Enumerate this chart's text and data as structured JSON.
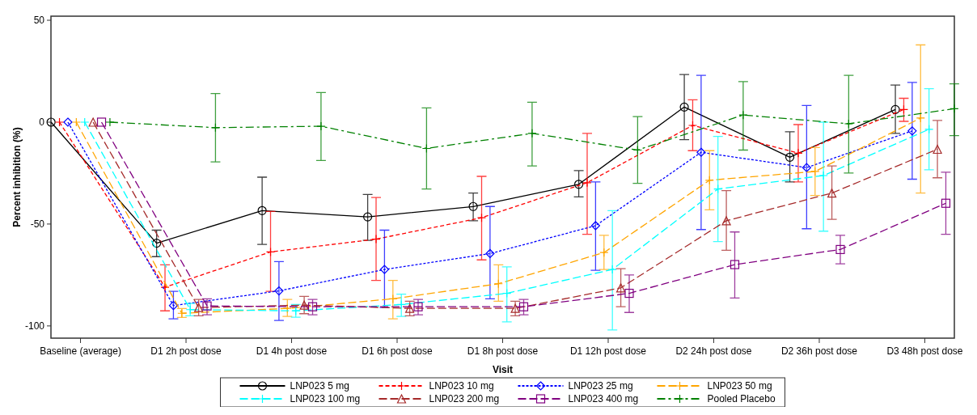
{
  "chart_data": {
    "type": "line",
    "xlabel": "Visit",
    "ylabel": "Percent inhibition (%)",
    "categories": [
      "Baseline (average)",
      "D1 2h post dose",
      "D1 4h post dose",
      "D1 6h post dose",
      "D1 8h post dose",
      "D1 12h post dose",
      "D2 24h post dose",
      "D2 36h post dose",
      "D3 48h post dose"
    ],
    "ylim": [
      -106,
      52
    ],
    "yticks": [
      -100,
      -50,
      0,
      50
    ],
    "grid": false,
    "legend": "bottom",
    "series": [
      {
        "name": "LNP023 5 mg",
        "color": "#000000",
        "marker": "circle",
        "line_style": "solid",
        "values": [
          0,
          -59.4,
          -43.4,
          -46.5,
          -41.4,
          -30.5,
          7.4,
          -17.2,
          6.2
        ],
        "errors": [
          null,
          [
            -66,
            -53
          ],
          [
            -60,
            -27
          ],
          [
            -58,
            -35.5
          ],
          [
            -48.4,
            -34.8
          ],
          [
            -36.7,
            -23.8
          ],
          [
            -8.6,
            23.4
          ],
          [
            -29.3,
            -4.7
          ],
          [
            -5.5,
            18.2
          ]
        ]
      },
      {
        "name": "LNP023 10 mg",
        "color": "#ff0000",
        "marker": "cross",
        "line_style": "dashed",
        "values": [
          0,
          -81,
          -63.7,
          -57.4,
          -46.9,
          -29.7,
          -1.6,
          -15.2,
          6.2
        ],
        "errors": [
          null,
          [
            -92.6,
            -70
          ],
          [
            -83,
            -43.8
          ],
          [
            -77.7,
            -37
          ],
          [
            -67.6,
            -26.6
          ],
          [
            -55,
            -5.5
          ],
          [
            -14,
            11
          ],
          [
            -29.3,
            -1.2
          ],
          [
            0.4,
            11.7
          ]
        ]
      },
      {
        "name": "LNP023 25 mg",
        "color": "#0000ff",
        "marker": "diamond",
        "line_style": "dotted",
        "values": [
          0,
          -90,
          -82.8,
          -72.3,
          -64.5,
          -50.8,
          -14.8,
          -22.3,
          -4.3
        ],
        "errors": [
          null,
          [
            -96.5,
            -83
          ],
          [
            -97.3,
            -68.4
          ],
          [
            -91,
            -53
          ],
          [
            -86.7,
            -41.4
          ],
          [
            -72.7,
            -29.3
          ],
          [
            -52.7,
            23
          ],
          [
            -52.3,
            8.2
          ],
          [
            -28,
            19.5
          ]
        ]
      },
      {
        "name": "LNP023 50 mg",
        "color": "#ffa500",
        "marker": "cross",
        "line_style": "longdash",
        "values": [
          0,
          -93.8,
          -91.4,
          -86.7,
          -79.3,
          -64,
          -28.5,
          -24.2,
          2
        ],
        "errors": [
          null,
          [
            -95.8,
            -91.5
          ],
          [
            -95.3,
            -87
          ],
          [
            -96.5,
            -77.7
          ],
          [
            -87.9,
            -70
          ],
          [
            -72.3,
            -55.5
          ],
          [
            -43,
            -14
          ],
          [
            -36,
            -12.5
          ],
          [
            -34.8,
            37.9
          ]
        ]
      },
      {
        "name": "LNP023 100 mg",
        "color": "#00ffff",
        "marker": "cross",
        "line_style": "longdash",
        "values": [
          0,
          -92,
          -92.6,
          -89.5,
          -84,
          -72.3,
          -32.8,
          -26.2,
          -3.5
        ],
        "errors": [
          null,
          [
            -95,
            -89
          ],
          [
            -95.7,
            -89.5
          ],
          [
            -95.3,
            -84.4
          ],
          [
            -98,
            -71
          ],
          [
            -102,
            -43.4
          ],
          [
            -58.6,
            -7
          ],
          [
            -53.5,
            0
          ],
          [
            -23.4,
            16.4
          ]
        ]
      },
      {
        "name": "LNP023 200 mg",
        "color": "#a52a2a",
        "marker": "triangle",
        "line_style": "longdash",
        "values": [
          0,
          -91,
          -89.8,
          -91.4,
          -91.4,
          -81.3,
          -48.4,
          -34.8,
          -13.3
        ],
        "errors": [
          null,
          [
            -95,
            -87
          ],
          [
            -94,
            -85.5
          ],
          [
            -95,
            -87.9
          ],
          [
            -95,
            -87.9
          ],
          [
            -90.6,
            -71.9
          ],
          [
            -62.9,
            -33.6
          ],
          [
            -47.7,
            -21.5
          ],
          [
            -27.3,
            0.8
          ]
        ]
      },
      {
        "name": "LNP023 400 mg",
        "color": "#800080",
        "marker": "square",
        "line_style": "longdash",
        "values": [
          0,
          -90.2,
          -90.6,
          -90.6,
          -90.6,
          -84,
          -69.9,
          -62.5,
          -39.8
        ],
        "errors": [
          null,
          [
            -94.5,
            -86.7
          ],
          [
            -94.5,
            -87
          ],
          [
            -94.5,
            -87
          ],
          [
            -94.5,
            -87
          ],
          [
            -93.4,
            -75
          ],
          [
            -86.3,
            -53.9
          ],
          [
            -69.5,
            -55.5
          ],
          [
            -55,
            -24.6
          ]
        ]
      },
      {
        "name": "Pooled Placebo",
        "color": "#008000",
        "marker": "cross",
        "line_style": "dashdot",
        "values": [
          0,
          -2.7,
          -2,
          -12.9,
          -5.5,
          -13.7,
          3.5,
          -0.8,
          6.6
        ],
        "errors": [
          null,
          [
            -19.5,
            14
          ],
          [
            -18.8,
            14.5
          ],
          [
            -32.8,
            7
          ],
          [
            -21.5,
            9.8
          ],
          [
            -30,
            2.7
          ],
          [
            -13.7,
            19.9
          ],
          [
            -25,
            23
          ],
          [
            -6.6,
            18.8
          ]
        ]
      }
    ]
  }
}
